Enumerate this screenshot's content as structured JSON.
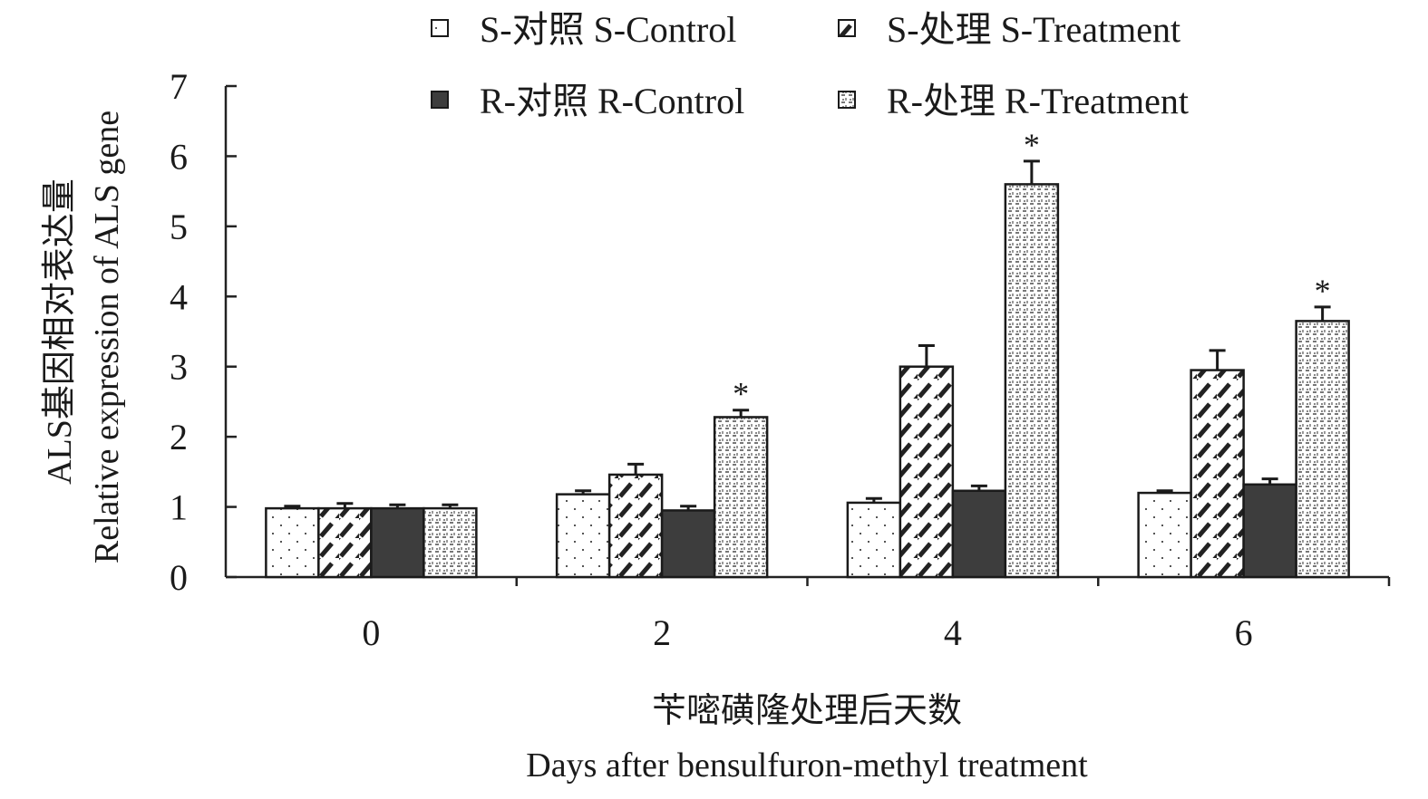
{
  "chart_data": {
    "type": "bar",
    "ylabel_cn": "ALS基因相对表达量",
    "ylabel": "Relative expression of ALS gene",
    "xlabel_cn": "苄嘧磺隆处理后天数",
    "xlabel": "Days after bensulfuron-methyl treatment",
    "categories": [
      "0",
      "2",
      "4",
      "6"
    ],
    "ylim": [
      0,
      7
    ],
    "yticks": [
      "0",
      "1",
      "2",
      "3",
      "4",
      "5",
      "6",
      "7"
    ],
    "legend_position": "top",
    "grid": false,
    "series": [
      {
        "name": "S-对照 S-Control",
        "values": [
          0.98,
          1.18,
          1.06,
          1.2
        ],
        "errors": [
          0.03,
          0.05,
          0.06,
          0.03
        ],
        "significant": [
          false,
          false,
          false,
          false
        ],
        "pattern": "dots",
        "color": "#ffffff"
      },
      {
        "name": "S-处理 S-Treatment",
        "values": [
          0.98,
          1.46,
          3.0,
          2.95
        ],
        "errors": [
          0.07,
          0.15,
          0.3,
          0.28
        ],
        "significant": [
          false,
          false,
          false,
          false
        ],
        "pattern": "diagonal",
        "color": "#ffffff"
      },
      {
        "name": "R-对照 R-Control",
        "values": [
          0.98,
          0.95,
          1.23,
          1.32
        ],
        "errors": [
          0.05,
          0.06,
          0.07,
          0.08
        ],
        "significant": [
          false,
          false,
          false,
          false
        ],
        "pattern": "solid",
        "color": "#3d3d3d"
      },
      {
        "name": "R-处理 R-Treatment",
        "values": [
          0.98,
          2.28,
          5.6,
          3.65
        ],
        "errors": [
          0.05,
          0.1,
          0.33,
          0.2
        ],
        "significant": [
          false,
          true,
          true,
          true
        ],
        "pattern": "grid",
        "color": "#ffffff"
      }
    ],
    "significance_marker": "*"
  }
}
